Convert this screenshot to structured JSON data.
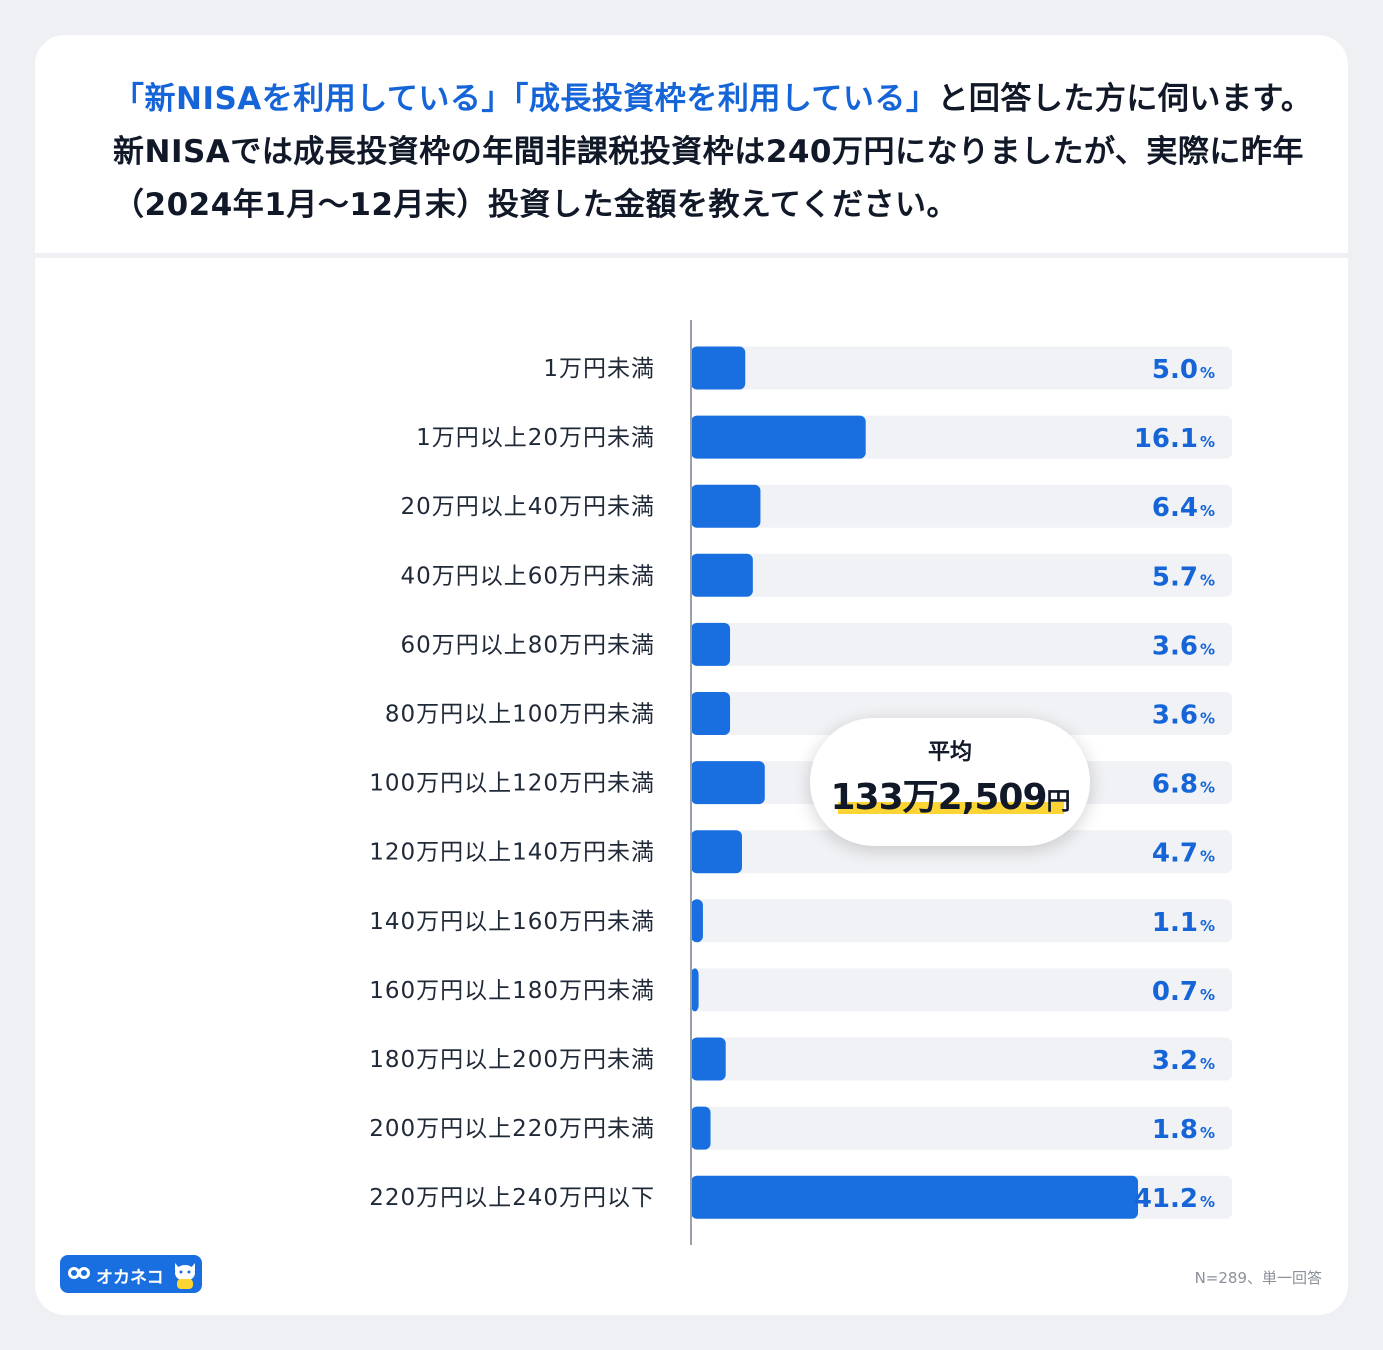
{
  "question": {
    "part1_highlight": "「新NISAを利用している」「成長投資枠を利用している」",
    "part2": "と回答した方に伺います。新NISAでは成長投資枠の年間非課税投資枠は240万円になりましたが、実際に昨年（2024年1月〜12月末）投資した金額を教えてください。"
  },
  "average": {
    "label": "平均",
    "value": "133万2,509",
    "unit": "円"
  },
  "note": "N=289、単一回答",
  "logo": {
    "name": "オカネコ"
  },
  "colors": {
    "bar": "#1a6fe0",
    "track": "#f1f2f5",
    "accent_text": "#1565d8",
    "highlight": "#fcd535"
  },
  "chart_data": {
    "type": "bar",
    "orientation": "horizontal",
    "categories": [
      "1万円未満",
      "1万円以上20万円未満",
      "20万円以上40万円未満",
      "40万円以上60万円未満",
      "60万円以上80万円未満",
      "80万円以上100万円未満",
      "100万円以上120万円未満",
      "120万円以上140万円未満",
      "140万円以上160万円未満",
      "160万円以上180万円未満",
      "180万円以上200万円未満",
      "200万円以上220万円未満",
      "220万円以上240万円以下"
    ],
    "values": [
      5.0,
      16.1,
      6.4,
      5.7,
      3.6,
      3.6,
      6.8,
      4.7,
      1.1,
      0.7,
      3.2,
      1.8,
      41.2
    ],
    "value_labels": [
      "5.0",
      "16.1",
      "6.4",
      "5.7",
      "3.6",
      "3.6",
      "6.8",
      "4.7",
      "1.1",
      "0.7",
      "3.2",
      "1.8",
      "41.2"
    ],
    "unit": "%",
    "xlim": [
      0,
      50
    ]
  }
}
